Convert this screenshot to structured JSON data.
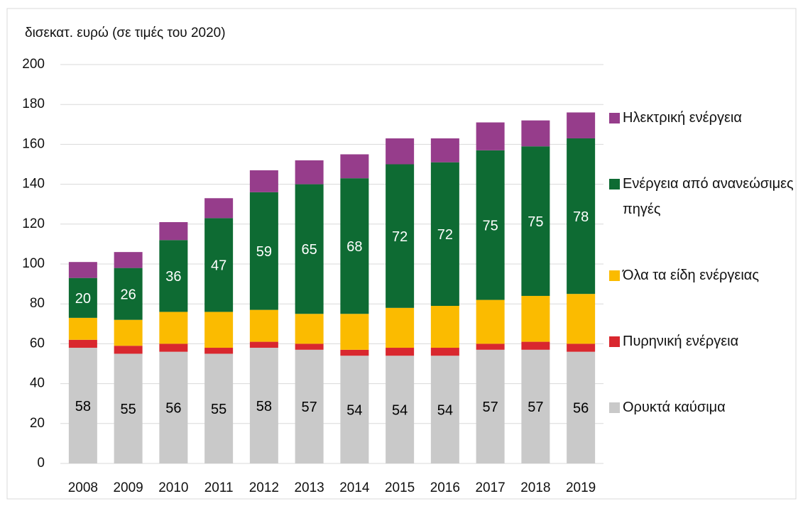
{
  "chart_data": {
    "type": "stacked_bar",
    "y_label": "δισεκατ. ευρώ (σε τιμές του 2020)",
    "categories": [
      "2008",
      "2009",
      "2010",
      "2011",
      "2012",
      "2013",
      "2014",
      "2015",
      "2016",
      "2017",
      "2018",
      "2019"
    ],
    "series": [
      {
        "name": "Ορυκτά καύσιμα",
        "color": "#c9c9c9",
        "show_labels": true,
        "label_color": "#000000",
        "values": [
          58,
          55,
          56,
          55,
          58,
          57,
          54,
          54,
          54,
          57,
          57,
          56
        ]
      },
      {
        "name": "Πυρηνική ενέργεια",
        "color": "#d9272e",
        "values": [
          4,
          4,
          4,
          3,
          3,
          3,
          3,
          4,
          4,
          3,
          4,
          4
        ]
      },
      {
        "name": "Όλα τα είδη ενέργειας",
        "color": "#fbbb00",
        "values": [
          11,
          13,
          16,
          18,
          16,
          15,
          18,
          20,
          21,
          22,
          23,
          25
        ]
      },
      {
        "name": "Ενέργεια από ανανεώσιμες πηγές",
        "color": "#0e6b33",
        "show_labels": true,
        "label_color": "#ffffff",
        "values": [
          20,
          26,
          36,
          47,
          59,
          65,
          68,
          72,
          72,
          75,
          75,
          78
        ]
      },
      {
        "name": "Ηλεκτρική ενέργεια",
        "color": "#963d8b",
        "values": [
          8,
          8,
          9,
          10,
          11,
          12,
          12,
          13,
          12,
          14,
          13,
          13
        ]
      }
    ],
    "ylim": [
      0,
      200
    ],
    "yticks": [
      0,
      20,
      40,
      60,
      80,
      100,
      120,
      140,
      160,
      180,
      200
    ],
    "grid": true,
    "legend": "right"
  }
}
